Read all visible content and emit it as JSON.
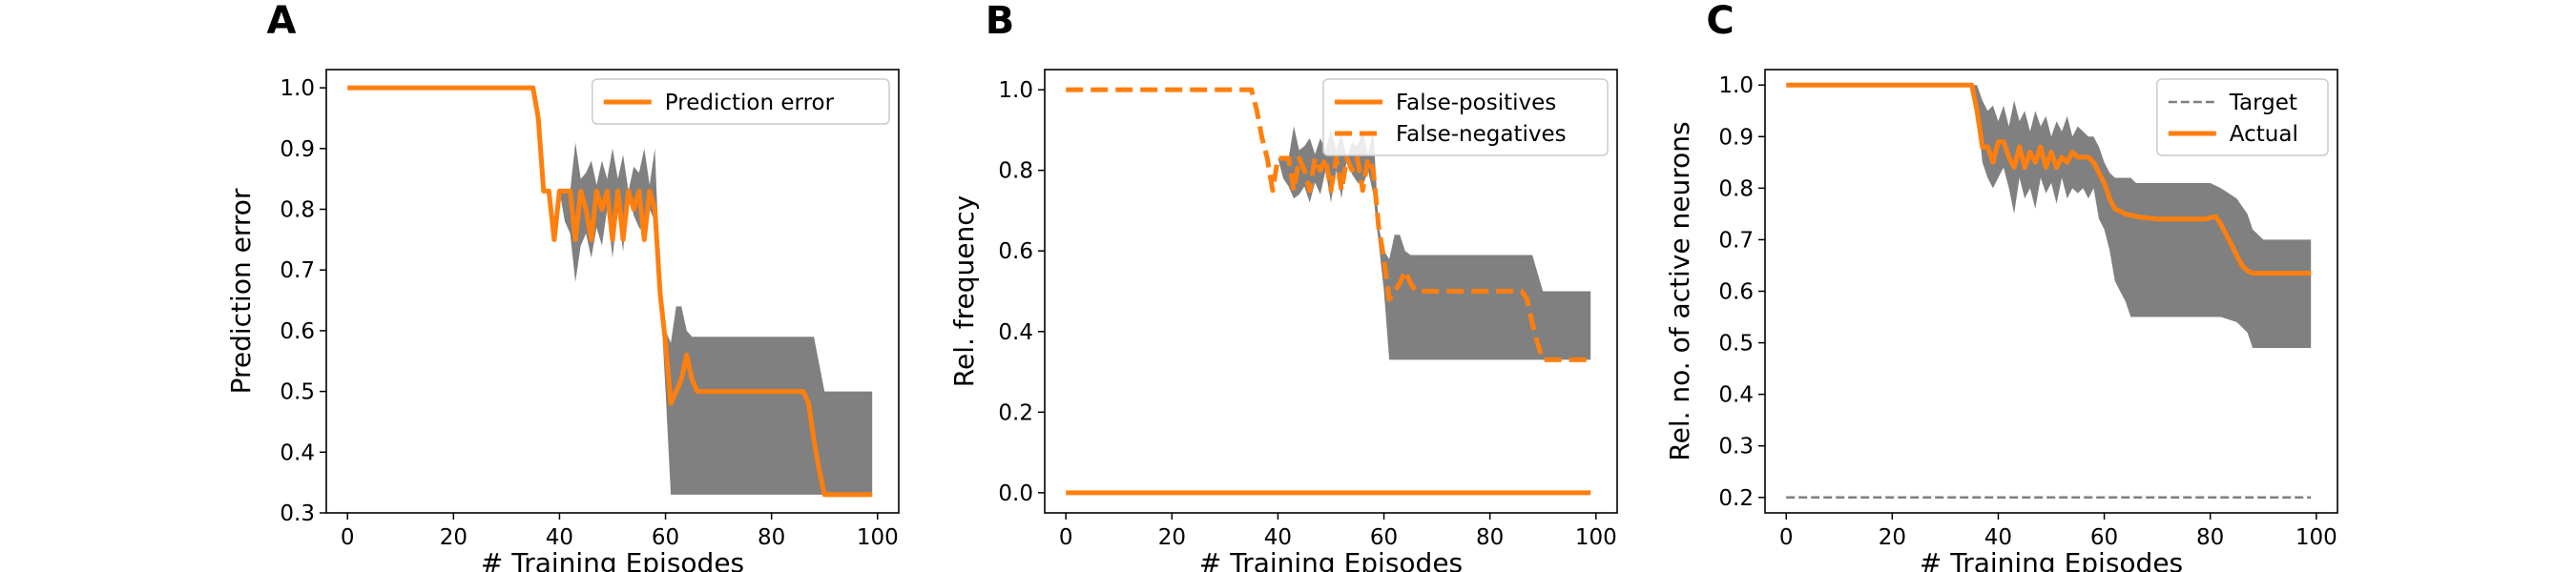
{
  "colors": {
    "orange": "#ff7f0e",
    "band": "#808080",
    "target": "#7f7f7f",
    "frame": "#000000"
  },
  "chart_data": [
    {
      "type": "line",
      "panel": "A",
      "xlabel": "# Training Episodes",
      "ylabel": "Prediction error",
      "xlim": [
        -4,
        104
      ],
      "ylim": [
        0.3,
        1.03
      ],
      "xticks": [
        0,
        20,
        40,
        60,
        80,
        100
      ],
      "yticks": [
        0.3,
        0.4,
        0.5,
        0.6,
        0.7,
        0.8,
        0.9,
        1.0
      ],
      "ytick_labels": [
        "0.3",
        "0.4",
        "0.5",
        "0.6",
        "0.7",
        "0.8",
        "0.9",
        "1.0"
      ],
      "legend": {
        "position": "top-right",
        "entries": [
          {
            "label": "Prediction error",
            "style": "solid"
          }
        ]
      },
      "band": {
        "x": [
          40,
          41,
          42,
          43,
          44,
          45,
          46,
          47,
          48,
          49,
          50,
          51,
          52,
          53,
          54,
          55,
          56,
          57,
          58,
          59,
          60,
          61,
          62,
          63,
          64,
          65,
          66,
          67,
          68,
          70,
          75,
          80,
          85,
          87,
          88,
          90,
          95,
          99
        ],
        "lower": [
          0.83,
          0.78,
          0.76,
          0.68,
          0.74,
          0.76,
          0.72,
          0.77,
          0.74,
          0.8,
          0.72,
          0.8,
          0.73,
          0.83,
          0.79,
          0.77,
          0.76,
          0.8,
          0.78,
          0.66,
          0.5,
          0.33,
          0.33,
          0.33,
          0.33,
          0.33,
          0.33,
          0.33,
          0.33,
          0.33,
          0.33,
          0.33,
          0.33,
          0.33,
          0.33,
          0.33,
          0.33,
          0.33
        ],
        "upper": [
          0.83,
          0.83,
          0.83,
          0.91,
          0.85,
          0.86,
          0.88,
          0.84,
          0.88,
          0.85,
          0.9,
          0.85,
          0.89,
          0.83,
          0.87,
          0.86,
          0.9,
          0.84,
          0.9,
          0.68,
          0.6,
          0.58,
          0.64,
          0.64,
          0.6,
          0.59,
          0.59,
          0.59,
          0.59,
          0.59,
          0.59,
          0.59,
          0.59,
          0.59,
          0.59,
          0.5,
          0.5,
          0.5
        ]
      },
      "series": [
        {
          "name": "Prediction error",
          "style": "solid",
          "x": [
            0,
            35,
            36,
            37,
            38,
            39,
            40,
            41,
            42,
            43,
            44,
            45,
            46,
            47,
            48,
            49,
            50,
            51,
            52,
            53,
            54,
            55,
            56,
            57,
            58,
            59,
            60,
            61,
            62,
            63,
            64,
            65,
            66,
            70,
            80,
            86,
            87,
            88,
            89,
            90,
            95,
            99
          ],
          "y": [
            1.0,
            1.0,
            0.95,
            0.83,
            0.83,
            0.75,
            0.83,
            0.83,
            0.83,
            0.75,
            0.83,
            0.8,
            0.75,
            0.83,
            0.8,
            0.83,
            0.75,
            0.83,
            0.75,
            0.83,
            0.8,
            0.83,
            0.75,
            0.83,
            0.8,
            0.66,
            0.58,
            0.48,
            0.5,
            0.52,
            0.56,
            0.52,
            0.5,
            0.5,
            0.5,
            0.5,
            0.48,
            0.42,
            0.37,
            0.33,
            0.33,
            0.33
          ]
        }
      ]
    },
    {
      "type": "line",
      "panel": "B",
      "xlabel": "# Training Episodes",
      "ylabel": "Rel. frequency",
      "xlim": [
        -4,
        104
      ],
      "ylim": [
        -0.05,
        1.05
      ],
      "xticks": [
        0,
        20,
        40,
        60,
        80,
        100
      ],
      "yticks": [
        0.0,
        0.2,
        0.4,
        0.6,
        0.8,
        1.0
      ],
      "ytick_labels": [
        "0.0",
        "0.2",
        "0.4",
        "0.6",
        "0.8",
        "1.0"
      ],
      "legend": {
        "position": "top-right",
        "entries": [
          {
            "label": "False-positives",
            "style": "solid"
          },
          {
            "label": "False-negatives",
            "style": "dashed"
          }
        ]
      },
      "band": {
        "x": [
          40,
          41,
          42,
          43,
          44,
          45,
          46,
          47,
          48,
          49,
          50,
          51,
          52,
          53,
          54,
          55,
          56,
          57,
          58,
          59,
          60,
          61,
          62,
          63,
          64,
          65,
          66,
          67,
          68,
          70,
          75,
          80,
          85,
          87,
          88,
          90,
          95,
          99
        ],
        "lower": [
          0.83,
          0.78,
          0.76,
          0.73,
          0.74,
          0.76,
          0.72,
          0.77,
          0.74,
          0.8,
          0.72,
          0.8,
          0.73,
          0.83,
          0.79,
          0.77,
          0.76,
          0.8,
          0.74,
          0.62,
          0.5,
          0.33,
          0.33,
          0.33,
          0.33,
          0.33,
          0.33,
          0.33,
          0.33,
          0.33,
          0.33,
          0.33,
          0.33,
          0.33,
          0.33,
          0.33,
          0.33,
          0.33
        ],
        "upper": [
          0.83,
          0.83,
          0.83,
          0.91,
          0.85,
          0.86,
          0.88,
          0.84,
          0.88,
          0.85,
          0.9,
          0.85,
          0.89,
          0.83,
          0.87,
          0.86,
          0.9,
          0.84,
          0.9,
          0.66,
          0.6,
          0.58,
          0.64,
          0.64,
          0.6,
          0.59,
          0.59,
          0.59,
          0.59,
          0.59,
          0.59,
          0.59,
          0.59,
          0.59,
          0.59,
          0.5,
          0.5,
          0.5
        ]
      },
      "series": [
        {
          "name": "False-positives",
          "style": "solid",
          "x": [
            0,
            99
          ],
          "y": [
            0.0,
            0.0
          ]
        },
        {
          "name": "False-negatives",
          "style": "dashed",
          "x": [
            0,
            35,
            36,
            37,
            38,
            39,
            40,
            41,
            42,
            43,
            44,
            45,
            46,
            47,
            48,
            49,
            50,
            51,
            52,
            53,
            54,
            55,
            56,
            57,
            58,
            59,
            60,
            61,
            62,
            63,
            64,
            65,
            66,
            70,
            80,
            86,
            87,
            88,
            89,
            90,
            95,
            99
          ],
          "y": [
            1.0,
            1.0,
            0.95,
            0.88,
            0.83,
            0.75,
            0.83,
            0.83,
            0.83,
            0.75,
            0.83,
            0.8,
            0.75,
            0.83,
            0.8,
            0.83,
            0.75,
            0.83,
            0.75,
            0.83,
            0.8,
            0.83,
            0.75,
            0.83,
            0.8,
            0.66,
            0.58,
            0.48,
            0.5,
            0.52,
            0.55,
            0.52,
            0.5,
            0.5,
            0.5,
            0.5,
            0.48,
            0.42,
            0.37,
            0.33,
            0.33,
            0.33
          ]
        }
      ]
    },
    {
      "type": "line",
      "panel": "C",
      "xlabel": "# Training Episodes",
      "ylabel": "Rel. no. of active neurons",
      "xlim": [
        -4,
        104
      ],
      "ylim": [
        0.17,
        1.03
      ],
      "xticks": [
        0,
        20,
        40,
        60,
        80,
        100
      ],
      "yticks": [
        0.2,
        0.3,
        0.4,
        0.5,
        0.6,
        0.7,
        0.8,
        0.9,
        1.0
      ],
      "ytick_labels": [
        "0.2",
        "0.3",
        "0.4",
        "0.5",
        "0.6",
        "0.7",
        "0.8",
        "0.9",
        "1.0"
      ],
      "legend": {
        "position": "top-right",
        "entries": [
          {
            "label": "Target",
            "style": "thin-dashed"
          },
          {
            "label": "Actual",
            "style": "solid"
          }
        ]
      },
      "band": {
        "x": [
          35,
          36,
          37,
          38,
          39,
          40,
          41,
          42,
          43,
          44,
          45,
          46,
          47,
          48,
          49,
          50,
          51,
          52,
          53,
          54,
          55,
          56,
          57,
          58,
          59,
          60,
          61,
          62,
          63,
          64,
          65,
          66,
          70,
          75,
          80,
          82,
          85,
          87,
          88,
          90,
          95,
          99
        ],
        "lower": [
          1.0,
          0.95,
          0.85,
          0.82,
          0.8,
          0.82,
          0.84,
          0.8,
          0.75,
          0.82,
          0.78,
          0.8,
          0.76,
          0.82,
          0.79,
          0.81,
          0.77,
          0.82,
          0.78,
          0.8,
          0.79,
          0.8,
          0.78,
          0.8,
          0.74,
          0.72,
          0.68,
          0.62,
          0.6,
          0.58,
          0.55,
          0.55,
          0.55,
          0.55,
          0.55,
          0.55,
          0.54,
          0.52,
          0.49,
          0.49,
          0.49,
          0.49
        ],
        "upper": [
          1.0,
          1.0,
          0.97,
          0.95,
          0.96,
          0.93,
          0.96,
          0.92,
          0.97,
          0.93,
          0.95,
          0.91,
          0.95,
          0.92,
          0.94,
          0.9,
          0.93,
          0.91,
          0.94,
          0.9,
          0.92,
          0.91,
          0.9,
          0.9,
          0.88,
          0.85,
          0.83,
          0.82,
          0.82,
          0.82,
          0.82,
          0.81,
          0.81,
          0.81,
          0.81,
          0.8,
          0.78,
          0.75,
          0.72,
          0.7,
          0.7,
          0.7
        ]
      },
      "series": [
        {
          "name": "Target",
          "style": "thin-dashed",
          "x": [
            0,
            99
          ],
          "y": [
            0.2,
            0.2
          ]
        },
        {
          "name": "Actual",
          "style": "solid",
          "x": [
            0,
            35,
            36,
            37,
            38,
            39,
            40,
            41,
            42,
            43,
            44,
            45,
            46,
            47,
            48,
            49,
            50,
            51,
            52,
            53,
            54,
            55,
            56,
            57,
            58,
            59,
            60,
            61,
            62,
            64,
            66,
            70,
            75,
            79,
            81,
            82,
            83,
            84,
            85,
            86,
            87,
            88,
            90,
            95,
            99
          ],
          "y": [
            1.0,
            1.0,
            0.95,
            0.88,
            0.88,
            0.85,
            0.89,
            0.89,
            0.86,
            0.84,
            0.88,
            0.84,
            0.87,
            0.85,
            0.88,
            0.84,
            0.87,
            0.84,
            0.86,
            0.85,
            0.87,
            0.86,
            0.86,
            0.86,
            0.85,
            0.83,
            0.81,
            0.78,
            0.76,
            0.75,
            0.745,
            0.74,
            0.74,
            0.74,
            0.745,
            0.73,
            0.71,
            0.69,
            0.67,
            0.65,
            0.64,
            0.635,
            0.635,
            0.635,
            0.635
          ]
        }
      ]
    }
  ]
}
